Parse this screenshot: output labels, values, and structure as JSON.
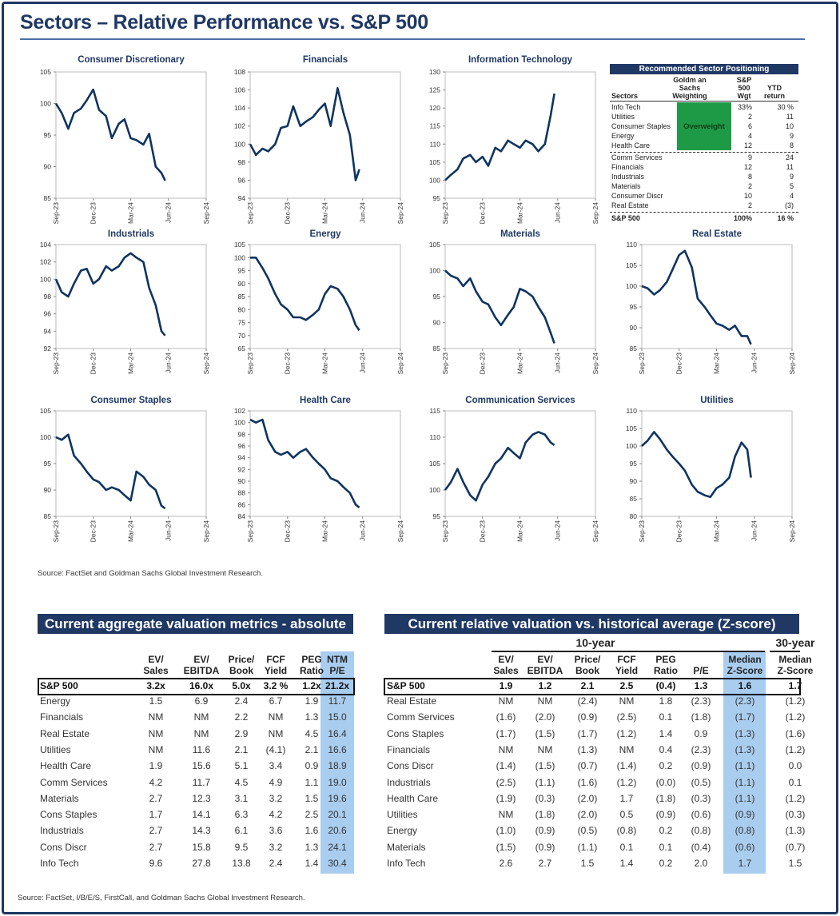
{
  "title": "Sectors – Relative Performance vs. S&P 500",
  "source_top": "Source: FactSet and Goldman Sachs Global Investment Research.",
  "source_bottom": "Source: FactSet, I/B/E/S, FirstCall, and Goldman Sachs Global Investment Research.",
  "colors": {
    "navy": "#1f3864",
    "line": "#0f3460",
    "overweight": "#1e9a46",
    "highlight": "#a9cdef"
  },
  "chart_data": {
    "type": "line",
    "x_ticks": [
      "Sep-23",
      "Dec-23",
      "Mar-24",
      "Jun-24",
      "Sep-24"
    ],
    "xlim": [
      "2023-09-01",
      "2024-09-01"
    ],
    "dates": [
      "2023-09-01",
      "2023-09-15",
      "2023-10-01",
      "2023-10-15",
      "2023-11-01",
      "2023-11-15",
      "2023-12-01",
      "2023-12-15",
      "2024-01-01",
      "2024-01-15",
      "2024-02-01",
      "2024-02-15",
      "2024-03-01",
      "2024-03-15",
      "2024-04-01",
      "2024-04-15",
      "2024-05-01",
      "2024-05-15",
      "2024-05-24"
    ],
    "grid": false,
    "charts": [
      {
        "title": "Consumer Discretionary",
        "ylim": [
          85,
          105
        ],
        "y_ticks": [
          85,
          90,
          95,
          100,
          105
        ],
        "values": [
          100,
          98.5,
          96,
          98.5,
          99.2,
          100.5,
          102.2,
          99,
          98,
          94.5,
          96.8,
          97.5,
          94.5,
          94.2,
          93.5,
          95.2,
          90,
          89,
          87.8
        ]
      },
      {
        "title": "Financials",
        "ylim": [
          94,
          108
        ],
        "y_ticks": [
          94,
          96,
          98,
          100,
          102,
          104,
          106,
          108
        ],
        "values": [
          100,
          98.8,
          99.5,
          99.2,
          100,
          101.8,
          102,
          104.2,
          102,
          102.5,
          103,
          103.8,
          104.5,
          102,
          106.2,
          103.5,
          101,
          96,
          97.2
        ]
      },
      {
        "title": "Information Technology",
        "ylim": [
          95,
          130
        ],
        "y_ticks": [
          95,
          100,
          105,
          110,
          115,
          120,
          125,
          130
        ],
        "values": [
          100,
          101.5,
          103,
          106,
          107,
          105,
          106.5,
          104,
          109,
          108,
          111,
          110,
          109,
          111,
          110,
          108,
          110,
          118,
          124
        ]
      },
      {
        "title": "Industrials",
        "ylim": [
          92,
          104
        ],
        "y_ticks": [
          92,
          94,
          96,
          98,
          100,
          102,
          104
        ],
        "values": [
          100,
          98.5,
          98,
          99.5,
          101,
          101.2,
          99.5,
          100,
          101.5,
          101,
          101.5,
          102.5,
          103,
          102.5,
          102,
          99,
          97,
          94,
          93.5
        ]
      },
      {
        "title": "Energy",
        "ylim": [
          65,
          105
        ],
        "y_ticks": [
          65,
          70,
          75,
          80,
          85,
          90,
          95,
          100,
          105
        ],
        "values": [
          100,
          100,
          96,
          92,
          86,
          82,
          80,
          77,
          77,
          76,
          78,
          80,
          86,
          89,
          88,
          85,
          80,
          74,
          72
        ]
      },
      {
        "title": "Materials",
        "ylim": [
          85,
          105
        ],
        "y_ticks": [
          85,
          90,
          95,
          100,
          105
        ],
        "values": [
          100,
          99,
          98.5,
          97,
          98.5,
          96,
          94,
          93.5,
          91,
          89.5,
          91.5,
          93,
          96.5,
          96,
          95,
          93,
          91,
          88,
          86
        ]
      },
      {
        "title": "Real Estate",
        "ylim": [
          85,
          110
        ],
        "y_ticks": [
          85,
          90,
          95,
          100,
          105,
          110
        ],
        "values": [
          100,
          99.5,
          98,
          99,
          101,
          104,
          107.5,
          108.5,
          104.5,
          97,
          95,
          93,
          91,
          90.5,
          89.5,
          90.5,
          88,
          88,
          86
        ]
      },
      {
        "title": "Consumer Staples",
        "ylim": [
          85,
          105
        ],
        "y_ticks": [
          85,
          90,
          95,
          100,
          105
        ],
        "values": [
          100,
          99.5,
          100.5,
          96.5,
          95,
          93.5,
          92,
          91.5,
          90,
          90.5,
          90,
          89,
          88,
          93.5,
          92.5,
          91,
          90,
          87,
          86.5
        ]
      },
      {
        "title": "Health Care",
        "ylim": [
          84,
          102
        ],
        "y_ticks": [
          84,
          86,
          88,
          90,
          92,
          94,
          96,
          98,
          100,
          102
        ],
        "values": [
          100.5,
          100,
          100.5,
          97,
          95,
          94.5,
          95,
          94,
          95,
          95.5,
          94,
          93,
          92,
          90.5,
          90,
          89,
          88,
          86,
          85.5
        ]
      },
      {
        "title": "Communication Services",
        "ylim": [
          95,
          115
        ],
        "y_ticks": [
          95,
          100,
          105,
          110,
          115
        ],
        "values": [
          100,
          101.5,
          104,
          101.5,
          99,
          98,
          101,
          102.5,
          105,
          106,
          108,
          107,
          106,
          109,
          110.5,
          111,
          110.5,
          109,
          108.5
        ]
      },
      {
        "title": "Utilities",
        "ylim": [
          80,
          110
        ],
        "y_ticks": [
          80,
          85,
          90,
          95,
          100,
          105,
          110
        ],
        "values": [
          100,
          101.5,
          104,
          102,
          99,
          97,
          95,
          93,
          89,
          87,
          86,
          85.5,
          88,
          89,
          91,
          97,
          101,
          99,
          91
        ]
      }
    ]
  },
  "positioning": {
    "title": "Recommended Sector Positioning",
    "headers": [
      "Sectors",
      "Goldman Sachs Weighting",
      "S&P 500 Wgt",
      "YTD return"
    ],
    "header_lines": [
      [
        "Sectors"
      ],
      [
        "Goldm an",
        "Sachs",
        "Weighting"
      ],
      [
        "S&P",
        "500",
        "Wgt"
      ],
      [
        "YTD",
        "return"
      ]
    ],
    "overweight_label": "Overweight",
    "overweight_rows": [
      {
        "sector": "Info Tech",
        "wgt": "33%",
        "ytd": "30 %"
      },
      {
        "sector": "Utilities",
        "wgt": "2",
        "ytd": "11"
      },
      {
        "sector": "Consumer Staples",
        "wgt": "6",
        "ytd": "10"
      },
      {
        "sector": "Energy",
        "wgt": "4",
        "ytd": "9"
      },
      {
        "sector": "Health Care",
        "wgt": "12",
        "ytd": "8"
      }
    ],
    "other_rows": [
      {
        "sector": "Comm Services",
        "wgt": "9",
        "ytd": "24"
      },
      {
        "sector": "Financials",
        "wgt": "12",
        "ytd": "11"
      },
      {
        "sector": "Industrials",
        "wgt": "8",
        "ytd": "9"
      },
      {
        "sector": "Materials",
        "wgt": "2",
        "ytd": "5"
      },
      {
        "sector": "Consumer Discr",
        "wgt": "10",
        "ytd": "4"
      },
      {
        "sector": "Real Estate",
        "wgt": "2",
        "ytd": "(3)"
      }
    ],
    "total": {
      "sector": "S&P 500",
      "wgt": "100%",
      "ytd": "16 %"
    }
  },
  "absolute": {
    "title": "Current aggregate valuation metrics - absolute",
    "columns": [
      [
        "EV/",
        "Sales"
      ],
      [
        "EV/",
        "EBITDA"
      ],
      [
        "Price/",
        "Book"
      ],
      [
        "FCF",
        "Yield"
      ],
      [
        "PEG",
        "Ratio"
      ],
      [
        "NTM",
        "P/E"
      ]
    ],
    "sp500": [
      "S&P 500",
      "3.2x",
      "16.0x",
      "5.0x",
      "3.2 %",
      "1.2x",
      "21.2x"
    ],
    "rows": [
      [
        "Energy",
        "1.5",
        "6.9",
        "2.4",
        "6.7",
        "1.9",
        "11.7"
      ],
      [
        "Financials",
        "NM",
        "NM",
        "2.2",
        "NM",
        "1.3",
        "15.0"
      ],
      [
        "Real Estate",
        "NM",
        "NM",
        "2.9",
        "NM",
        "4.5",
        "16.4"
      ],
      [
        "Utilities",
        "NM",
        "11.6",
        "2.1",
        "(4.1)",
        "2.1",
        "16.6"
      ],
      [
        "Health Care",
        "1.9",
        "15.6",
        "5.1",
        "3.4",
        "0.9",
        "18.9"
      ],
      [
        "Comm Services",
        "4.2",
        "11.7",
        "4.5",
        "4.9",
        "1.1",
        "19.0"
      ],
      [
        "Materials",
        "2.7",
        "12.3",
        "3.1",
        "3.2",
        "1.5",
        "19.6"
      ],
      [
        "Cons Staples",
        "1.7",
        "14.1",
        "6.3",
        "4.2",
        "2.5",
        "20.1"
      ],
      [
        "Industrials",
        "2.7",
        "14.3",
        "6.1",
        "3.6",
        "1.6",
        "20.6"
      ],
      [
        "Cons Discr",
        "2.7",
        "15.8",
        "9.5",
        "3.2",
        "1.3",
        "24.1"
      ],
      [
        "Info Tech",
        "9.6",
        "27.8",
        "13.8",
        "2.4",
        "1.4",
        "30.4"
      ]
    ]
  },
  "relative": {
    "title": "Current relative valuation vs. historical average (Z-score)",
    "group_10": "10-year",
    "group_30": "30-year",
    "columns": [
      [
        "EV/",
        "Sales"
      ],
      [
        "EV/",
        "EBITDA"
      ],
      [
        "Price/",
        "Book"
      ],
      [
        "FCF",
        "Yield"
      ],
      [
        "PEG",
        "Ratio"
      ],
      [
        "",
        "P/E"
      ],
      [
        "Median",
        "Z-Score"
      ],
      [
        "Median",
        "Z-Score"
      ]
    ],
    "sp500": [
      "S&P 500",
      "1.9",
      "1.2",
      "2.1",
      "2.5",
      "(0.4)",
      "1.3",
      "1.6",
      "1.7"
    ],
    "rows": [
      [
        "Real Estate",
        "NM",
        "NM",
        "(2.4)",
        "NM",
        "1.8",
        "(2.3)",
        "(2.3)",
        "(1.2)"
      ],
      [
        "Comm Services",
        "(1.6)",
        "(2.0)",
        "(0.9)",
        "(2.5)",
        "0.1",
        "(1.8)",
        "(1.7)",
        "(1.2)"
      ],
      [
        "Cons Staples",
        "(1.7)",
        "(1.5)",
        "(1.7)",
        "(1.2)",
        "1.4",
        "0.9",
        "(1.3)",
        "(1.6)"
      ],
      [
        "Financials",
        "NM",
        "NM",
        "(1.3)",
        "NM",
        "0.4",
        "(2.3)",
        "(1.3)",
        "(1.2)"
      ],
      [
        "Cons Discr",
        "(1.4)",
        "(1.5)",
        "(0.7)",
        "(1.4)",
        "0.2",
        "(0.9)",
        "(1.1)",
        "0.0"
      ],
      [
        "Industrials",
        "(2.5)",
        "(1.1)",
        "(1.6)",
        "(1.2)",
        "(0.0)",
        "(0.5)",
        "(1.1)",
        "0.1"
      ],
      [
        "Health Care",
        "(1.9)",
        "(0.3)",
        "(2.0)",
        "1.7",
        "(1.8)",
        "(0.3)",
        "(1.1)",
        "(1.2)"
      ],
      [
        "Utilities",
        "NM",
        "(1.8)",
        "(2.0)",
        "0.5",
        "(0.9)",
        "(0.6)",
        "(0.9)",
        "(0.3)"
      ],
      [
        "Energy",
        "(1.0)",
        "(0.9)",
        "(0.5)",
        "(0.8)",
        "0.2",
        "(0.8)",
        "(0.8)",
        "(1.3)"
      ],
      [
        "Materials",
        "(1.5)",
        "(0.9)",
        "(1.1)",
        "0.1",
        "0.1",
        "(0.4)",
        "(0.6)",
        "(0.7)"
      ],
      [
        "Info Tech",
        "2.6",
        "2.7",
        "1.5",
        "1.4",
        "0.2",
        "2.0",
        "1.7",
        "1.5"
      ]
    ]
  }
}
